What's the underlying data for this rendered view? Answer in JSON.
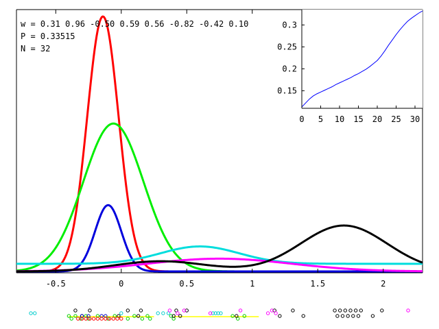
{
  "info": {
    "w_label": "w = 0.31 0.96 -0.50 0.59 0.56 -0.82 -0.42 0.10",
    "p_label": "P = 0.33515",
    "n_label": "N = 32"
  },
  "chart_data": [
    {
      "type": "line",
      "title": "",
      "xlabel": "",
      "ylabel": "",
      "xlim": [
        -0.8,
        2.3
      ],
      "ylim": [
        0,
        1.0
      ],
      "x_ticks": [
        "-0.5",
        "0",
        "0.5",
        "1",
        "1.5",
        "2"
      ],
      "x_tick_values": [
        -0.5,
        0,
        0.5,
        1,
        1.5,
        2
      ],
      "grid": false,
      "series": [
        {
          "color": "#ff0000",
          "kind": "gaussian",
          "mu": -0.14,
          "sigma": 0.12,
          "peak": 1.0
        },
        {
          "color": "#00ee00",
          "kind": "gaussian",
          "mu": -0.06,
          "sigma": 0.23,
          "peak": 0.58
        },
        {
          "color": "#0000dd",
          "kind": "gaussian",
          "mu": -0.1,
          "sigma": 0.1,
          "peak": 0.26
        },
        {
          "color": "#00dddd",
          "kind": "gaussian",
          "mu": 0.6,
          "sigma": 0.3,
          "peak": 0.068,
          "baseline": 0.03
        },
        {
          "color": "#ff00ff",
          "kind": "gaussian",
          "mu": 0.75,
          "sigma": 0.55,
          "peak": 0.05
        },
        {
          "color": "#000000",
          "kind": "gaussian_pair",
          "mu": 1.7,
          "sigma": 0.33,
          "peak": 0.18,
          "mu2": 0.3,
          "sigma2": 0.35,
          "peak2": 0.04
        }
      ],
      "rug": {
        "xlim": [
          -0.8,
          2.3
        ],
        "groups": [
          {
            "color": "#00cccc",
            "rows": [
              0
            ],
            "x": [
              -0.69,
              -0.66,
              0.0,
              0.28,
              0.32,
              0.36,
              0.7,
              0.72,
              0.74,
              0.76
            ]
          },
          {
            "color": "#00cc00",
            "rows": [
              1,
              2
            ],
            "x": [
              -0.4,
              -0.38,
              -0.35,
              -0.31,
              -0.27,
              -0.25,
              -0.18,
              -0.1,
              -0.05,
              0.05,
              0.1,
              0.16,
              0.2,
              0.22,
              0.38,
              0.4,
              0.85,
              0.89,
              0.94
            ]
          },
          {
            "color": "#000000",
            "rows": [
              -1,
              1
            ],
            "x": [
              -0.35,
              -0.3,
              -0.24,
              -0.02,
              0.05,
              0.13,
              0.15,
              0.4,
              0.42,
              0.45,
              0.5,
              0.88,
              1.17,
              1.21,
              1.31,
              1.39,
              1.63,
              1.65,
              1.67,
              1.69,
              1.71,
              1.73,
              1.75,
              1.77,
              1.79,
              1.81,
              1.83,
              1.92,
              1.99
            ]
          },
          {
            "color": "#0000cc",
            "rows": [
              1
            ],
            "x": [
              -0.3,
              -0.25,
              -0.15,
              -0.12
            ]
          },
          {
            "color": "#ff0000",
            "rows": [
              2
            ],
            "x": [
              -0.33,
              -0.3,
              -0.27,
              -0.24,
              -0.21,
              -0.18,
              -0.15,
              -0.12,
              -0.09,
              -0.06,
              -0.03,
              0.0
            ]
          },
          {
            "color": "#ff00ff",
            "rows": [
              -1,
              0
            ],
            "x": [
              0.37,
              0.43,
              0.48,
              0.68,
              0.91,
              1.12,
              1.15,
              1.18,
              2.19
            ]
          }
        ],
        "segments": [
          {
            "color": "#ffff00",
            "x1": -0.4,
            "x2": 0.25
          },
          {
            "color": "#ffff00",
            "x1": 0.4,
            "x2": 1.05
          }
        ]
      }
    },
    {
      "type": "line",
      "title": "",
      "xlabel": "",
      "ylabel": "",
      "xlim": [
        0,
        32
      ],
      "ylim": [
        0.11,
        0.335
      ],
      "x_ticks": [
        "0",
        "5",
        "10",
        "15",
        "20",
        "25",
        "30"
      ],
      "x_tick_values": [
        0,
        5,
        10,
        15,
        20,
        25,
        30
      ],
      "y_ticks": [
        "0.15",
        "0.2",
        "0.25",
        "0.3"
      ],
      "y_tick_values": [
        0.15,
        0.2,
        0.25,
        0.3
      ],
      "grid": false,
      "series": [
        {
          "color": "#0000ff",
          "x": [
            0,
            1,
            2,
            3,
            4,
            5,
            6,
            7,
            8,
            9,
            10,
            11,
            12,
            13,
            14,
            15,
            16,
            17,
            18,
            19,
            20,
            21,
            22,
            23,
            24,
            25,
            26,
            27,
            28,
            29,
            30,
            31,
            32
          ],
          "y": [
            0.113,
            0.122,
            0.131,
            0.138,
            0.143,
            0.147,
            0.151,
            0.155,
            0.159,
            0.164,
            0.168,
            0.172,
            0.176,
            0.18,
            0.185,
            0.189,
            0.194,
            0.199,
            0.205,
            0.212,
            0.219,
            0.229,
            0.241,
            0.254,
            0.266,
            0.278,
            0.289,
            0.299,
            0.308,
            0.315,
            0.321,
            0.327,
            0.332
          ]
        }
      ]
    }
  ]
}
